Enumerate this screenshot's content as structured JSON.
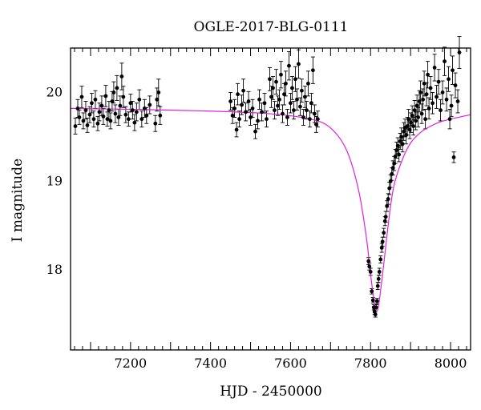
{
  "chart_data": {
    "type": "scatter",
    "title": "OGLE-2017-BLG-0111",
    "xlabel": "HJD - 2450000",
    "ylabel": "I magnitude",
    "xlim": [
      7050,
      8050
    ],
    "ylim": [
      20.5,
      17.1
    ],
    "y_inverted": true,
    "grid": false,
    "x_ticks": [
      7200,
      7400,
      7600,
      7800,
      8000
    ],
    "y_ticks": [
      18,
      19,
      20
    ],
    "colors": {
      "points": "#000000",
      "model": "#dd22dd"
    },
    "model_curve": {
      "name": "",
      "x": [
        7050,
        7200,
        7400,
        7550,
        7650,
        7700,
        7740,
        7770,
        7790,
        7800,
        7810,
        7815,
        7820,
        7830,
        7840,
        7850,
        7860,
        7880,
        7900,
        7925,
        7950,
        7975,
        8000,
        8050
      ],
      "y": [
        19.82,
        19.81,
        19.79,
        19.76,
        19.7,
        19.6,
        19.35,
        18.9,
        18.35,
        17.95,
        17.62,
        17.55,
        17.6,
        17.95,
        18.35,
        18.72,
        18.98,
        19.25,
        19.43,
        19.55,
        19.62,
        19.67,
        19.7,
        19.75
      ]
    },
    "series": [
      {
        "name": "",
        "points": [
          [
            7062,
            19.62,
            0.09
          ],
          [
            7068,
            19.82,
            0.1
          ],
          [
            7072,
            19.72,
            0.08
          ],
          [
            7078,
            19.95,
            0.12
          ],
          [
            7082,
            19.68,
            0.09
          ],
          [
            7088,
            19.8,
            0.1
          ],
          [
            7092,
            19.63,
            0.08
          ],
          [
            7098,
            19.75,
            0.09
          ],
          [
            7103,
            19.88,
            0.11
          ],
          [
            7108,
            19.7,
            0.09
          ],
          [
            7112,
            19.92,
            0.1
          ],
          [
            7118,
            19.65,
            0.08
          ],
          [
            7122,
            19.78,
            0.1
          ],
          [
            7128,
            19.85,
            0.11
          ],
          [
            7132,
            19.73,
            0.09
          ],
          [
            7138,
            19.96,
            0.12
          ],
          [
            7142,
            19.7,
            0.08
          ],
          [
            7146,
            19.8,
            0.1
          ],
          [
            7150,
            19.68,
            0.09
          ],
          [
            7154,
            19.9,
            0.11
          ],
          [
            7158,
            20.0,
            0.12
          ],
          [
            7162,
            19.76,
            0.1
          ],
          [
            7166,
            20.05,
            0.14
          ],
          [
            7170,
            19.72,
            0.09
          ],
          [
            7174,
            19.85,
            0.11
          ],
          [
            7178,
            20.18,
            0.15
          ],
          [
            7182,
            19.95,
            0.12
          ],
          [
            7188,
            19.75,
            0.09
          ],
          [
            7195,
            19.7,
            0.08
          ],
          [
            7200,
            19.88,
            0.1
          ],
          [
            7205,
            19.8,
            0.1
          ],
          [
            7210,
            19.66,
            0.09
          ],
          [
            7215,
            19.78,
            0.1
          ],
          [
            7222,
            19.92,
            0.11
          ],
          [
            7228,
            19.7,
            0.09
          ],
          [
            7235,
            19.82,
            0.1
          ],
          [
            7240,
            19.74,
            0.09
          ],
          [
            7248,
            19.86,
            0.1
          ],
          [
            7262,
            19.65,
            0.09
          ],
          [
            7266,
            19.92,
            0.13
          ],
          [
            7270,
            20.0,
            0.15
          ],
          [
            7274,
            19.74,
            0.1
          ],
          [
            7450,
            19.9,
            0.1
          ],
          [
            7455,
            19.74,
            0.09
          ],
          [
            7460,
            19.82,
            0.1
          ],
          [
            7465,
            19.58,
            0.08
          ],
          [
            7468,
            19.98,
            0.12
          ],
          [
            7472,
            19.7,
            0.09
          ],
          [
            7478,
            19.86,
            0.11
          ],
          [
            7482,
            20.02,
            0.13
          ],
          [
            7488,
            19.78,
            0.1
          ],
          [
            7495,
            19.9,
            0.11
          ],
          [
            7500,
            19.72,
            0.09
          ],
          [
            7505,
            19.82,
            0.1
          ],
          [
            7512,
            19.56,
            0.08
          ],
          [
            7518,
            19.68,
            0.09
          ],
          [
            7522,
            19.92,
            0.11
          ],
          [
            7528,
            19.78,
            0.1
          ],
          [
            7535,
            19.88,
            0.11
          ],
          [
            7540,
            19.7,
            0.09
          ],
          [
            7548,
            20.15,
            0.13
          ],
          [
            7552,
            19.95,
            0.12
          ],
          [
            7556,
            20.05,
            0.13
          ],
          [
            7560,
            19.8,
            0.1
          ],
          [
            7564,
            20.12,
            0.14
          ],
          [
            7568,
            19.85,
            0.11
          ],
          [
            7572,
            19.92,
            0.11
          ],
          [
            7576,
            20.2,
            0.15
          ],
          [
            7580,
            19.76,
            0.1
          ],
          [
            7584,
            19.98,
            0.12
          ],
          [
            7588,
            20.1,
            0.14
          ],
          [
            7592,
            19.72,
            0.09
          ],
          [
            7596,
            20.3,
            0.16
          ],
          [
            7600,
            19.88,
            0.11
          ],
          [
            7604,
            20.05,
            0.13
          ],
          [
            7608,
            19.8,
            0.1
          ],
          [
            7612,
            20.15,
            0.14
          ],
          [
            7616,
            19.92,
            0.12
          ],
          [
            7620,
            20.32,
            0.16
          ],
          [
            7624,
            19.84,
            0.1
          ],
          [
            7628,
            20.02,
            0.13
          ],
          [
            7632,
            19.72,
            0.09
          ],
          [
            7636,
            19.95,
            0.12
          ],
          [
            7640,
            19.8,
            0.1
          ],
          [
            7644,
            20.1,
            0.14
          ],
          [
            7648,
            19.7,
            0.09
          ],
          [
            7652,
            19.88,
            0.11
          ],
          [
            7656,
            20.25,
            0.15
          ],
          [
            7660,
            19.76,
            0.1
          ],
          [
            7664,
            19.64,
            0.09
          ],
          [
            7668,
            19.7,
            0.09
          ],
          [
            7795,
            18.1,
            0.04
          ],
          [
            7797,
            18.04,
            0.04
          ],
          [
            7800,
            17.98,
            0.04
          ],
          [
            7803,
            17.76,
            0.03
          ],
          [
            7806,
            17.66,
            0.03
          ],
          [
            7808,
            17.58,
            0.03
          ],
          [
            7810,
            17.53,
            0.03
          ],
          [
            7812,
            17.5,
            0.03
          ],
          [
            7814,
            17.58,
            0.03
          ],
          [
            7816,
            17.65,
            0.03
          ],
          [
            7818,
            17.82,
            0.04
          ],
          [
            7820,
            17.9,
            0.04
          ],
          [
            7822,
            17.98,
            0.04
          ],
          [
            7825,
            18.12,
            0.04
          ],
          [
            7828,
            18.25,
            0.05
          ],
          [
            7830,
            18.32,
            0.05
          ],
          [
            7833,
            18.42,
            0.05
          ],
          [
            7836,
            18.55,
            0.05
          ],
          [
            7838,
            18.6,
            0.06
          ],
          [
            7841,
            18.72,
            0.06
          ],
          [
            7844,
            18.8,
            0.06
          ],
          [
            7847,
            18.92,
            0.07
          ],
          [
            7850,
            19.0,
            0.07
          ],
          [
            7853,
            19.08,
            0.07
          ],
          [
            7856,
            19.15,
            0.08
          ],
          [
            7859,
            19.2,
            0.08
          ],
          [
            7862,
            19.28,
            0.08
          ],
          [
            7865,
            19.35,
            0.09
          ],
          [
            7868,
            19.4,
            0.09
          ],
          [
            7871,
            19.3,
            0.08
          ],
          [
            7874,
            19.45,
            0.09
          ],
          [
            7877,
            19.5,
            0.1
          ],
          [
            7880,
            19.42,
            0.09
          ],
          [
            7883,
            19.56,
            0.1
          ],
          [
            7886,
            19.6,
            0.1
          ],
          [
            7889,
            19.52,
            0.1
          ],
          [
            7892,
            19.62,
            0.1
          ],
          [
            7895,
            19.7,
            0.11
          ],
          [
            7898,
            19.58,
            0.1
          ],
          [
            7901,
            19.66,
            0.11
          ],
          [
            7904,
            19.74,
            0.11
          ],
          [
            7907,
            19.62,
            0.1
          ],
          [
            7910,
            19.8,
            0.11
          ],
          [
            7913,
            19.68,
            0.1
          ],
          [
            7916,
            19.85,
            0.12
          ],
          [
            7919,
            19.72,
            0.11
          ],
          [
            7922,
            19.9,
            0.12
          ],
          [
            7925,
            20.0,
            0.13
          ],
          [
            7928,
            19.76,
            0.11
          ],
          [
            7931,
            19.92,
            0.12
          ],
          [
            7934,
            20.1,
            0.14
          ],
          [
            7937,
            19.7,
            0.11
          ],
          [
            7940,
            19.98,
            0.13
          ],
          [
            7943,
            20.2,
            0.15
          ],
          [
            7946,
            19.82,
            0.12
          ],
          [
            7950,
            20.05,
            0.13
          ],
          [
            7955,
            19.88,
            0.12
          ],
          [
            7960,
            20.28,
            0.15
          ],
          [
            7965,
            19.95,
            0.13
          ],
          [
            7970,
            20.12,
            0.14
          ],
          [
            7975,
            19.8,
            0.12
          ],
          [
            7980,
            20.0,
            0.13
          ],
          [
            7985,
            20.35,
            0.16
          ],
          [
            7990,
            19.92,
            0.13
          ],
          [
            7995,
            20.15,
            0.14
          ],
          [
            7998,
            19.7,
            0.11
          ],
          [
            8002,
            19.85,
            0.12
          ],
          [
            8005,
            20.25,
            0.16
          ],
          [
            8008,
            19.27,
            0.06
          ],
          [
            8012,
            20.08,
            0.14
          ],
          [
            8018,
            19.9,
            0.13
          ],
          [
            8022,
            20.45,
            0.18
          ]
        ]
      }
    ]
  }
}
